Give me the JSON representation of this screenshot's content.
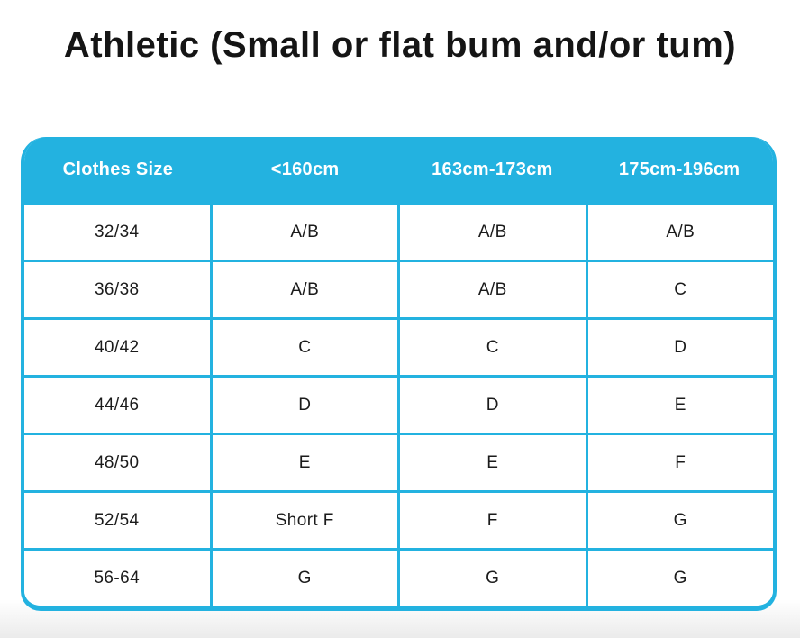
{
  "page_title": "Athletic (Small or flat bum and/or tum)",
  "colors": {
    "accent_cyan": "#23b2e0",
    "header_text": "#ffffff",
    "cell_text": "#1b1b1b",
    "title_text": "#151515",
    "page_bottom_fade": "#ebebeb"
  },
  "chart_data": {
    "type": "table",
    "title": "Athletic (Small or flat bum and/or tum)",
    "columns": [
      "Clothes Size",
      "<160cm",
      "163cm-173cm",
      "175cm-196cm"
    ],
    "rows": [
      [
        "32/34",
        "A/B",
        "A/B",
        "A/B"
      ],
      [
        "36/38",
        "A/B",
        "A/B",
        "C"
      ],
      [
        "40/42",
        "C",
        "C",
        "D"
      ],
      [
        "44/46",
        "D",
        "D",
        "E"
      ],
      [
        "48/50",
        "E",
        "E",
        "F"
      ],
      [
        "52/54",
        "Short F",
        "F",
        "G"
      ],
      [
        "56-64",
        "G",
        "G",
        "G"
      ]
    ],
    "layout": {
      "header_background": "#23b2e0",
      "grid": "cyan lines between all rows and columns",
      "corner_style": "rounded card"
    }
  }
}
